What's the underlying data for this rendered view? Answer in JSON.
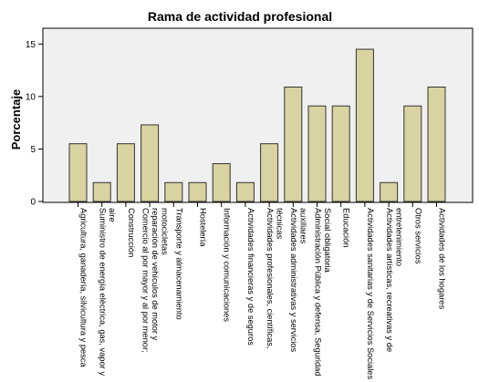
{
  "chart_data": {
    "type": "bar",
    "title": "Rama de actividad profesional",
    "xlabel": "",
    "ylabel": "Porcentaje",
    "ylim": [
      0,
      16.5
    ],
    "yticks": [
      "0",
      "5",
      "10",
      "15"
    ],
    "grid": false,
    "legend": "none",
    "colors": {
      "bar": "#d9d3a1",
      "bar_stroke": "#333333",
      "plot_bg": "#f0f0f0",
      "axis": "#000000"
    },
    "categories": [
      [
        "Agricultura, ganadería, silvicultura y pesca"
      ],
      [
        "Suministro de energía eléctrica, gas, vapor y",
        "aire"
      ],
      [
        "Construcción"
      ],
      [
        "Comercio al por mayor y al por menor;",
        "reparación de vehículos de motor y",
        "motocicletas"
      ],
      [
        "Transporte y almacenamiento"
      ],
      [
        "Hostelería"
      ],
      [
        "Información y comunicaciones"
      ],
      [
        "Actividades financieras y de seguros"
      ],
      [
        "Actividades profesionales, científicas,",
        "técnicas"
      ],
      [
        "Actividades administrativas y servicios",
        "auxiliares"
      ],
      [
        "Administración Pública y defensa, Seguridad",
        "Social obligatoria"
      ],
      [
        "Educación"
      ],
      [
        "Actividades sanitarias y de Servicios Sociales"
      ],
      [
        "Actividades artísticas, recreativas y de",
        "entretenimiento"
      ],
      [
        "Otros servicios"
      ],
      [
        "Actividades de los hogares"
      ]
    ],
    "values": [
      5.5,
      1.8,
      5.5,
      7.3,
      1.8,
      1.8,
      3.6,
      1.8,
      5.5,
      10.9,
      9.1,
      9.1,
      14.5,
      1.8,
      9.1,
      10.9
    ]
  }
}
